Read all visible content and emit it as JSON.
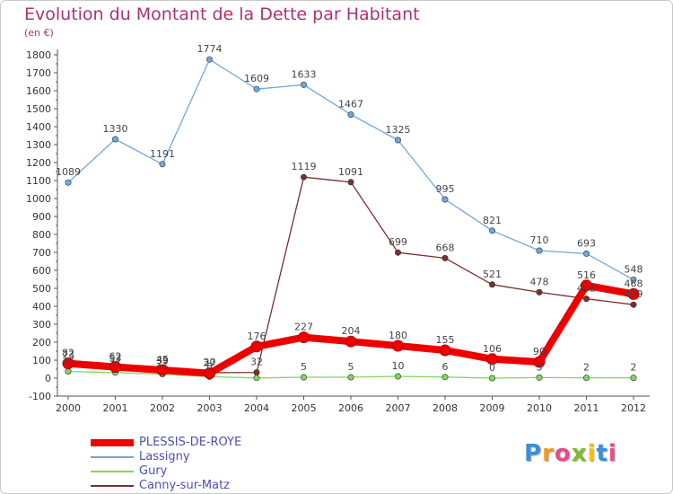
{
  "header": {
    "title": "Evolution du Montant de la Dette par Habitant",
    "subtitle": "(en €)"
  },
  "logo": {
    "letters": [
      "P",
      "r",
      "o",
      "x",
      "i",
      "t",
      "i"
    ],
    "colors": [
      "#3a8fd8",
      "#f29a1c",
      "#e84b8a",
      "#7dbd2f",
      "#f2c21c",
      "#3a8fd8",
      "#e84b8a"
    ]
  },
  "chart_data": {
    "type": "line",
    "title": "Evolution du Montant de la Dette par Habitant",
    "ylabel": "(en €)",
    "xlabel": "",
    "x": [
      "2000",
      "2001",
      "2002",
      "2003",
      "2004",
      "2005",
      "2006",
      "2007",
      "2008",
      "2009",
      "2010",
      "2011",
      "2012"
    ],
    "ylim": [
      -100,
      1800
    ],
    "yticks": [
      -100,
      0,
      100,
      200,
      300,
      400,
      500,
      600,
      700,
      800,
      900,
      1000,
      1100,
      1200,
      1300,
      1400,
      1500,
      1600,
      1700,
      1800
    ],
    "grid": false,
    "legend": "bottom-left",
    "series": [
      {
        "name": "PLESSIS-DE-ROYE",
        "color": "#ee0000",
        "values": [
          82,
          62,
          45,
          27,
          176,
          227,
          204,
          180,
          155,
          106,
          90,
          516,
          468
        ],
        "labels": [
          "82",
          "62",
          "45",
          "27",
          "176",
          "227",
          "204",
          "180",
          "155",
          "106",
          "90",
          "516",
          "468"
        ]
      },
      {
        "name": "Lassigny",
        "color": "#6fa8dc",
        "values": [
          1089,
          1330,
          1191,
          1774,
          1609,
          1633,
          1467,
          1325,
          995,
          821,
          710,
          693,
          548
        ],
        "labels": [
          "1089",
          "1330",
          "1191",
          "1774",
          "1609",
          "1633",
          "1467",
          "1325",
          "995",
          "821",
          "710",
          "693",
          "548"
        ]
      },
      {
        "name": "Gury",
        "color": "#7fd85a",
        "values": [
          37,
          31,
          22,
          8,
          1,
          5,
          5,
          10,
          6,
          0,
          3,
          2,
          2
        ],
        "labels": [
          "37",
          "31",
          "22",
          "8",
          "",
          "5",
          "5",
          "10",
          "6",
          "0",
          "3",
          "2",
          "2"
        ]
      },
      {
        "name": "Canny-sur-Matz",
        "color": "#7a3030",
        "values": [
          73,
          53,
          39,
          30,
          32,
          1119,
          1091,
          699,
          668,
          521,
          478,
          442,
          409
        ],
        "labels": [
          "73",
          "53",
          "39",
          "30",
          "32",
          "1119",
          "1091",
          "699",
          "668",
          "521",
          "478",
          "442",
          "409"
        ]
      }
    ]
  }
}
